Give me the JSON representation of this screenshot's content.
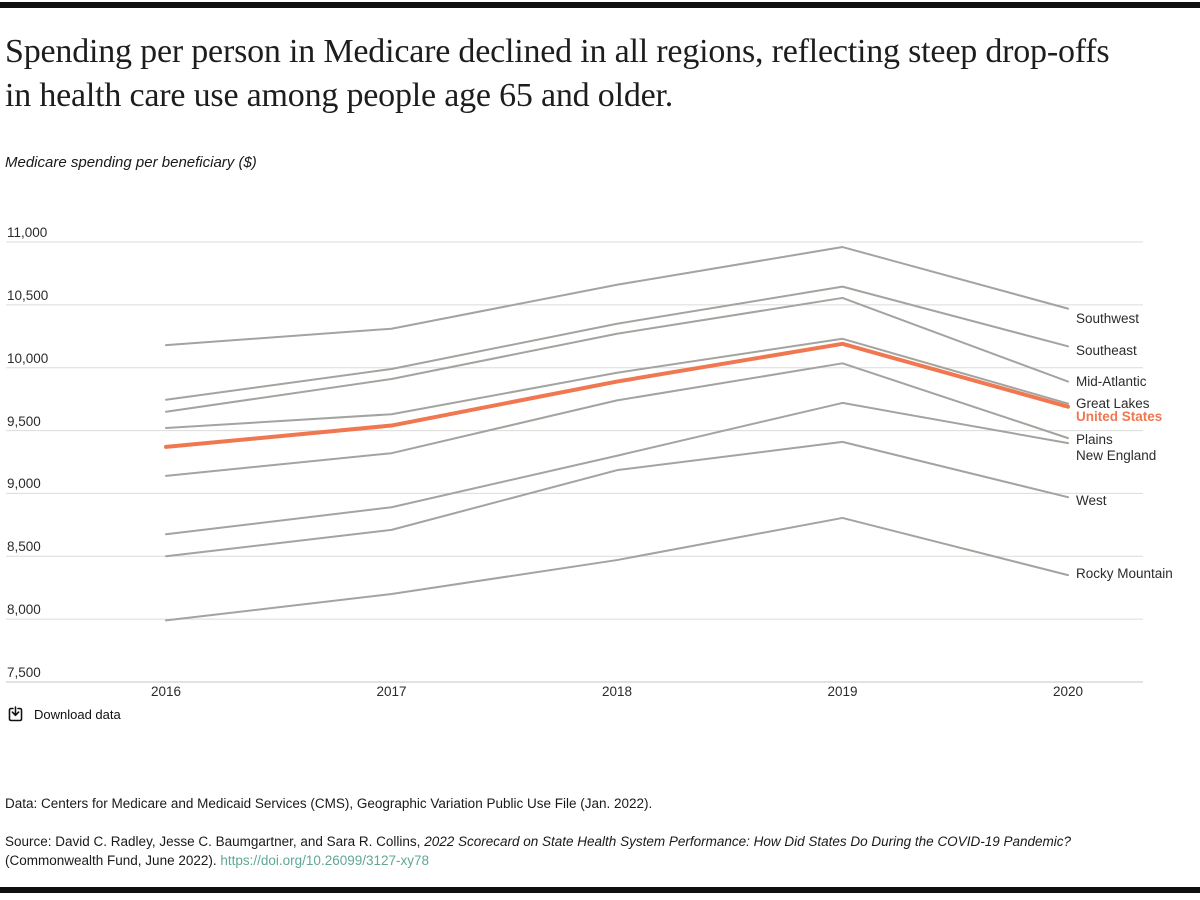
{
  "page": {
    "download_label": "Download data",
    "footer": {
      "data_note": "Data: Centers for Medicare and Medicaid Services (CMS), Geographic Variation Public Use File (Jan. 2022).",
      "source_prefix": "Source: David C. Radley, Jesse C. Baumgartner, and Sara R. Collins, ",
      "source_title": "2022 Scorecard on State Health System Performance: How Did States Do During the COVID-19 Pandemic?",
      "source_suffix": "(Commonwealth Fund, June 2022). ",
      "source_link": "https://doi.org/10.26099/3127-xy78"
    },
    "colors": {
      "accent_orange": "#F0774F",
      "line_gray": "#A3A49F",
      "grid": "#DBDBD9",
      "grid_bottom": "#C6C6C4",
      "link_teal": "#5FA795",
      "bar_black": "#101010",
      "text_dark": "#1D1D1D"
    }
  },
  "chart_data": {
    "type": "line",
    "title": "Spending per person in Medicare declined in all regions, reflecting steep drop-offs in health care use among people age 65 and older.",
    "ylabel": "Medicare spending per beneficiary ($)",
    "x": [
      2016,
      2017,
      2018,
      2019,
      2020
    ],
    "ylim": [
      7500,
      11000
    ],
    "grid": true,
    "legend_position": "right-of-line-ends",
    "yticks": [
      {
        "value": 11000,
        "label": "11,000"
      },
      {
        "value": 10500,
        "label": "10,500"
      },
      {
        "value": 10000,
        "label": "10,000"
      },
      {
        "value": 9500,
        "label": "9,500"
      },
      {
        "value": 9000,
        "label": "9,000"
      },
      {
        "value": 8500,
        "label": "8,500"
      },
      {
        "value": 8000,
        "label": "8,000"
      },
      {
        "value": 7500,
        "label": "7,500"
      }
    ],
    "series": [
      {
        "name": "Southwest",
        "values": [
          10180,
          10310,
          10660,
          10960,
          10470
        ],
        "label_dy": 10
      },
      {
        "name": "Southeast",
        "values": [
          9745,
          9990,
          10350,
          10645,
          10170
        ],
        "label_dy": 5
      },
      {
        "name": "Mid-Atlantic",
        "values": [
          9650,
          9910,
          10270,
          10555,
          9890
        ],
        "label_dy": 0
      },
      {
        "name": "Great Lakes",
        "values": [
          9520,
          9630,
          9960,
          10230,
          9715
        ],
        "label_dy": 0
      },
      {
        "name": "United States",
        "values": [
          9370,
          9540,
          9890,
          10190,
          9690
        ],
        "label_dy": 10,
        "emphasis": true
      },
      {
        "name": "Plains",
        "values": [
          9140,
          9320,
          9740,
          10035,
          9440
        ],
        "label_dy": 2
      },
      {
        "name": "New England",
        "values": [
          8675,
          8890,
          9300,
          9720,
          9400
        ],
        "label_dy": 13
      },
      {
        "name": "West",
        "values": [
          8500,
          8710,
          9185,
          9410,
          8970
        ],
        "label_dy": 4
      },
      {
        "name": "Rocky Mountain",
        "values": [
          7990,
          8200,
          8470,
          8805,
          8350
        ],
        "label_dy": -1
      }
    ]
  }
}
